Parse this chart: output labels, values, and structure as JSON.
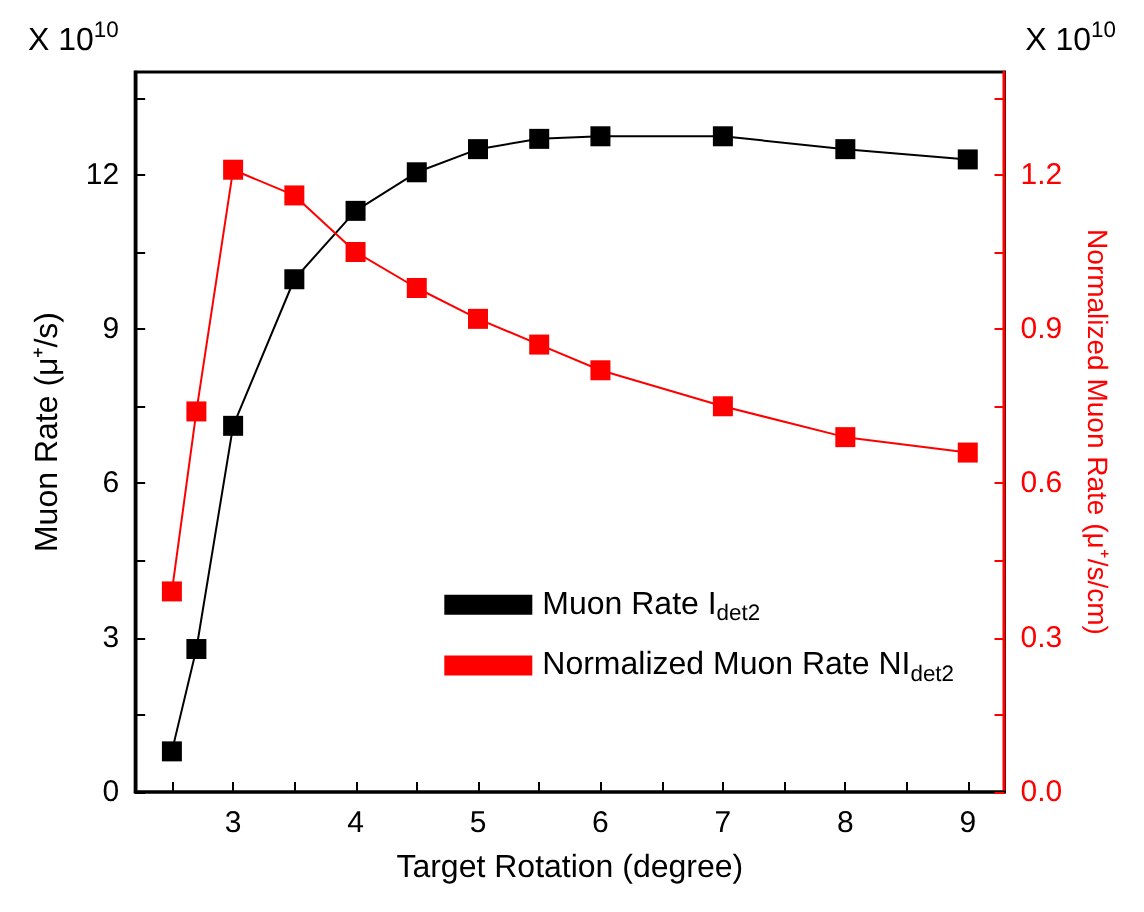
{
  "chart_data": {
    "type": "line",
    "xlabel": "Target Rotation (degree)",
    "ylabel": "Muon Rate (μ⁺/s)",
    "y2label": "Normalized Muon Rate (μ⁺/s/cm)",
    "annotations": [
      "X 10$^{10}$",
      "X 10$^{10}$"
    ],
    "x": [
      2.5,
      2.7,
      3,
      3.5,
      4,
      4.5,
      5,
      5.5,
      6,
      7,
      8,
      9
    ],
    "series": [
      {
        "name": "Muon Rate I$_{det2}$",
        "color": "#000000",
        "values": [
          0.79,
          2.78,
          7.12,
          9.97,
          11.3,
          12.05,
          12.5,
          12.7,
          12.75,
          12.75,
          12.5,
          12.3
        ]
      },
      {
        "name": "Normalized Muon Rate NI$_{det2}$",
        "color": "#ff0000",
        "axis": "y2",
        "values": [
          0.39,
          0.74,
          1.21,
          1.16,
          1.05,
          0.98,
          0.92,
          0.87,
          0.82,
          0.75,
          0.69,
          0.66
        ]
      }
    ],
    "xlim": [
      2.2,
      9.3
    ],
    "xticks": [
      {
        "value": 2.5,
        "label": null
      },
      3,
      {
        "value": 3.5,
        "label": null
      },
      4,
      {
        "value": 4.5,
        "label": null
      },
      5,
      {
        "value": 5.5,
        "label": null
      },
      6,
      {
        "value": 6.5,
        "label": null
      },
      7,
      {
        "value": 7.5,
        "label": null
      },
      8,
      {
        "value": 8.5,
        "label": null
      },
      9
    ],
    "ylim": [
      0,
      14
    ],
    "yticks": [
      0,
      {
        "value": 1.5,
        "label": null
      },
      3,
      {
        "value": 4.5,
        "label": null
      },
      6,
      {
        "value": 7.5,
        "label": null
      },
      9,
      {
        "value": 10.5,
        "label": null
      },
      12,
      {
        "value": 13.5,
        "label": null
      }
    ],
    "y2lim": [
      0,
      1.4
    ],
    "y2ticks": [
      "0.0",
      {
        "value": 0.15,
        "label": null
      },
      0.3,
      {
        "value": 0.45,
        "label": null
      },
      0.6,
      {
        "value": 0.75,
        "label": null
      },
      0.9,
      {
        "value": 1.05,
        "label": null
      },
      1.2,
      {
        "value": 1.35,
        "label": null
      }
    ],
    "marker": "square",
    "line_style": "solid",
    "grid": false,
    "legend": "bottom right"
  }
}
